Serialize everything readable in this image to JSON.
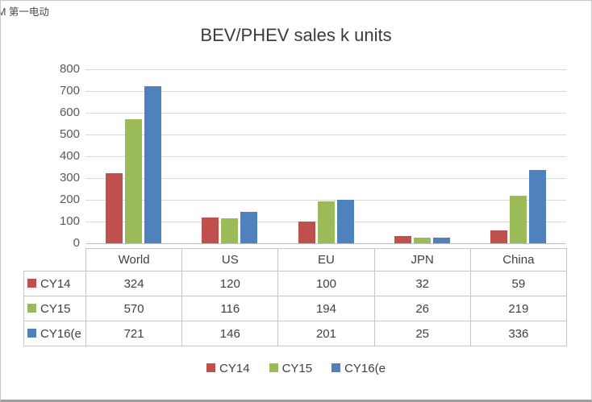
{
  "watermark": "M 第一电动",
  "chart_data": {
    "type": "bar",
    "title": "BEV/PHEV sales k units",
    "categories": [
      "World",
      "US",
      "EU",
      "JPN",
      "China"
    ],
    "series": [
      {
        "name": "CY14",
        "color": "#c0504d",
        "values": [
          324,
          120,
          100,
          32,
          59
        ]
      },
      {
        "name": "CY15",
        "color": "#9bbb59",
        "values": [
          570,
          116,
          194,
          26,
          219
        ]
      },
      {
        "name": "CY16(e",
        "color": "#4f81bd",
        "values": [
          721,
          146,
          201,
          25,
          336
        ]
      }
    ],
    "ylim": [
      0,
      800
    ],
    "ytick_step": 100,
    "grid": true,
    "legend_position": "bottom",
    "table_shown": true
  }
}
